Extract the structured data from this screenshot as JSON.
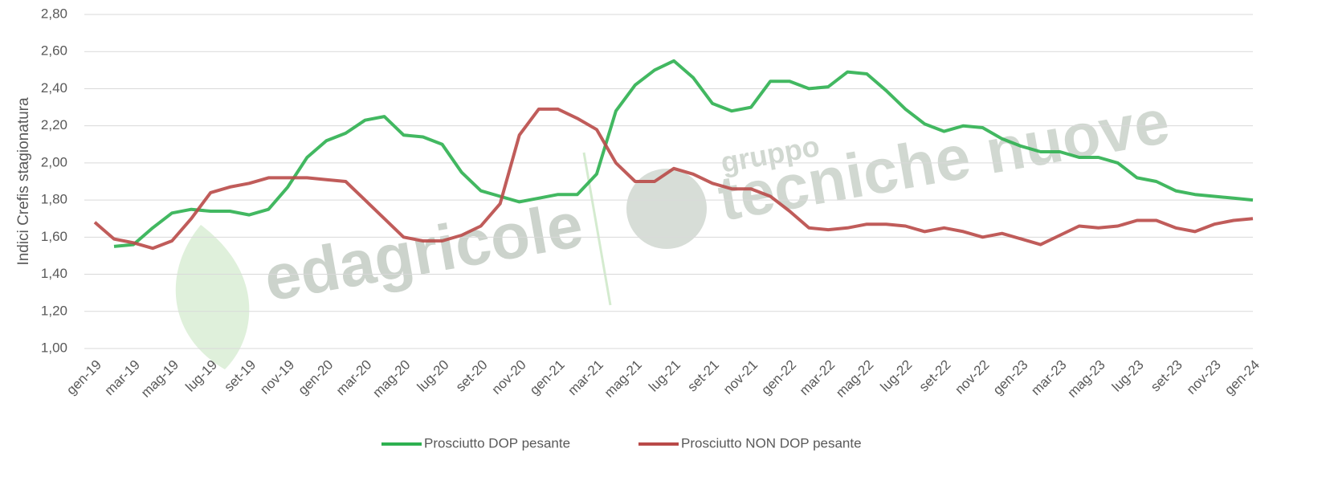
{
  "chart_data": {
    "type": "line",
    "ylabel": "Indici Crefis stagionatura",
    "watermark": [
      "edagricole",
      "gruppo",
      "tecniche nuove"
    ],
    "categories": [
      "gen-19",
      null,
      "mar-19",
      null,
      "mag-19",
      null,
      "lug-19",
      null,
      "set-19",
      null,
      "nov-19",
      null,
      "gen-20",
      null,
      "mar-20",
      null,
      "mag-20",
      null,
      "lug-20",
      null,
      "set-20",
      null,
      "nov-20",
      null,
      "gen-21",
      null,
      "mar-21",
      null,
      "mag-21",
      null,
      "lug-21",
      null,
      "set-21",
      null,
      "nov-21",
      null,
      "gen-22",
      null,
      "mar-22",
      null,
      "mag-22",
      null,
      "lug-22",
      null,
      "set-22",
      null,
      "nov-22",
      null,
      "gen-23",
      null,
      "mar-23",
      null,
      "mag-23",
      null,
      "lug-23",
      null,
      "set-23",
      null,
      "nov-23",
      null,
      "gen-24"
    ],
    "series": [
      {
        "name": "Prosciutto DOP pesante",
        "color": "#2eb050",
        "values": [
          null,
          1.55,
          1.56,
          1.65,
          1.73,
          1.75,
          1.74,
          1.74,
          1.72,
          1.75,
          1.87,
          2.03,
          2.12,
          2.16,
          2.23,
          2.25,
          2.15,
          2.14,
          2.1,
          1.95,
          1.85,
          1.82,
          1.79,
          1.81,
          1.83,
          1.83,
          1.94,
          2.28,
          2.42,
          2.5,
          2.55,
          2.46,
          2.32,
          2.28,
          2.3,
          2.44,
          2.44,
          2.4,
          2.41,
          2.49,
          2.48,
          2.39,
          2.29,
          2.21,
          2.17,
          2.2,
          2.19,
          2.13,
          2.09,
          2.06,
          2.06,
          2.03,
          2.03,
          2.0,
          1.92,
          1.9,
          1.85,
          1.83,
          1.82,
          1.81,
          1.8
        ]
      },
      {
        "name": "Prosciutto NON DOP pesante",
        "color": "#b94a48",
        "values": [
          1.68,
          1.59,
          1.57,
          1.54,
          1.58,
          1.7,
          1.84,
          1.87,
          1.89,
          1.92,
          1.92,
          1.92,
          1.91,
          1.9,
          1.8,
          1.7,
          1.6,
          1.58,
          1.58,
          1.61,
          1.66,
          1.78,
          2.15,
          2.29,
          2.29,
          2.24,
          2.18,
          2.0,
          1.9,
          1.9,
          1.97,
          1.94,
          1.89,
          1.86,
          1.86,
          1.82,
          1.74,
          1.65,
          1.64,
          1.65,
          1.67,
          1.67,
          1.66,
          1.63,
          1.65,
          1.63,
          1.6,
          1.62,
          1.59,
          1.56,
          1.61,
          1.66,
          1.65,
          1.66,
          1.69,
          1.69,
          1.65,
          1.63,
          1.67,
          1.69,
          1.7
        ]
      }
    ],
    "ylim": [
      1.0,
      2.8
    ],
    "yticks": [
      {
        "value": 1.0,
        "label": "1,00"
      },
      {
        "value": 1.2,
        "label": "1,20"
      },
      {
        "value": 1.4,
        "label": "1,40"
      },
      {
        "value": 1.6,
        "label": "1,60"
      },
      {
        "value": 1.8,
        "label": "1,80"
      },
      {
        "value": 2.0,
        "label": "2,00"
      },
      {
        "value": 2.2,
        "label": "2,20"
      },
      {
        "value": 2.4,
        "label": "2,40"
      },
      {
        "value": 2.6,
        "label": "2,60"
      },
      {
        "value": 2.8,
        "label": "2,80"
      }
    ],
    "grid": true,
    "legend": "bottom"
  }
}
